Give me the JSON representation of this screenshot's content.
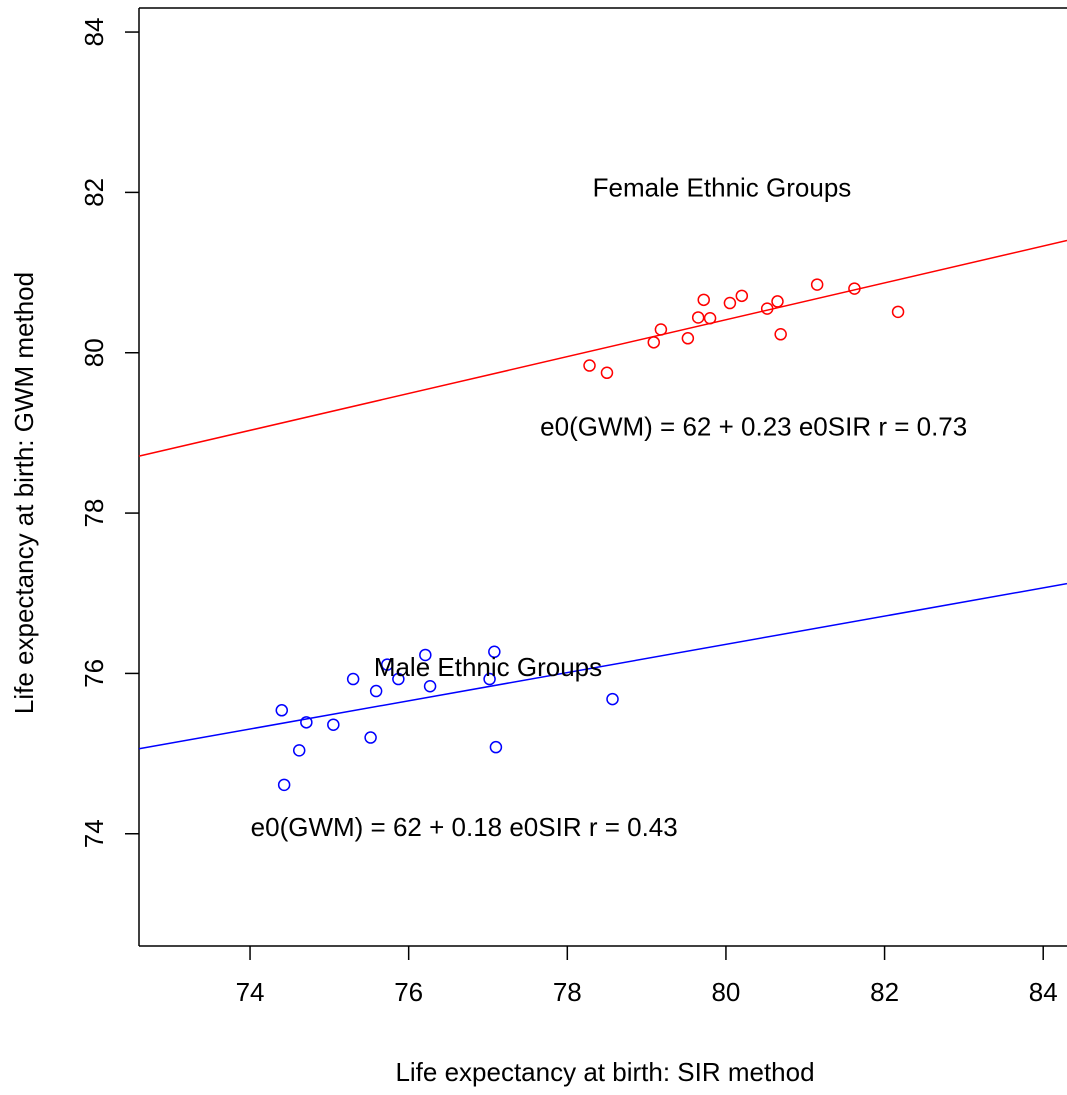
{
  "chart_data": {
    "type": "scatter",
    "title": "",
    "xlabel": "Life expectancy at birth:  SIR method",
    "ylabel": "Life expectancy at birth:  GWM method",
    "xlim": [
      72.6,
      84.3
    ],
    "ylim": [
      72.6,
      84.3
    ],
    "xticks": [
      "74",
      "76",
      "78",
      "80",
      "82",
      "84"
    ],
    "yticks": [
      "74",
      "76",
      "78",
      "80",
      "82",
      "84"
    ],
    "grid": false,
    "series": [
      {
        "name": "Female Ethnic Groups",
        "color": "#ff0000",
        "marker": "open-circle",
        "points": [
          [
            78.28,
            79.84
          ],
          [
            78.5,
            79.75
          ],
          [
            79.09,
            80.13
          ],
          [
            79.18,
            80.29
          ],
          [
            79.52,
            80.18
          ],
          [
            79.65,
            80.44
          ],
          [
            79.72,
            80.66
          ],
          [
            79.8,
            80.43
          ],
          [
            80.05,
            80.62
          ],
          [
            80.2,
            80.71
          ],
          [
            80.52,
            80.55
          ],
          [
            80.65,
            80.64
          ],
          [
            80.69,
            80.23
          ],
          [
            81.15,
            80.85
          ],
          [
            81.62,
            80.8
          ],
          [
            82.17,
            80.51
          ]
        ],
        "fit": {
          "intercept": 62,
          "slope": 0.23,
          "r": 0.73,
          "label": "e0(GWM) = 62 + 0.23 e0SIR     r = 0.73"
        }
      },
      {
        "name": "Male Ethnic Groups",
        "color": "#0000ff",
        "marker": "open-circle",
        "points": [
          [
            74.4,
            75.54
          ],
          [
            74.43,
            74.61
          ],
          [
            74.62,
            75.04
          ],
          [
            74.71,
            75.39
          ],
          [
            75.05,
            75.36
          ],
          [
            75.3,
            75.93
          ],
          [
            75.52,
            75.2
          ],
          [
            75.59,
            75.78
          ],
          [
            75.73,
            76.11
          ],
          [
            75.87,
            75.93
          ],
          [
            76.21,
            76.23
          ],
          [
            76.27,
            75.84
          ],
          [
            77.02,
            75.93
          ],
          [
            77.08,
            76.27
          ],
          [
            77.1,
            75.08
          ],
          [
            78.57,
            75.68
          ]
        ],
        "fit": {
          "intercept": 62,
          "slope": 0.18,
          "r": 0.43,
          "label": "e0(GWM) = 62 + 0.18 e0SIR     r = 0.43"
        }
      }
    ],
    "fit_lines": [
      {
        "series": "Female Ethnic Groups",
        "x": [
          72.6,
          84.3
        ],
        "y": [
          78.71,
          81.4
        ]
      },
      {
        "series": "Male Ethnic Groups",
        "x": [
          72.6,
          84.3
        ],
        "y": [
          75.06,
          77.12
        ]
      }
    ],
    "annotations": [
      {
        "name": "female-group-label",
        "text": "Female Ethnic Groups",
        "x": 79.95,
        "y": 81.95,
        "anchor": "middle"
      },
      {
        "name": "female-fit-label",
        "text": "e0(GWM) = 62 + 0.23 e0SIR     r = 0.73",
        "x": 80.35,
        "y": 78.97,
        "anchor": "middle"
      },
      {
        "name": "male-group-label",
        "text": "Male Ethnic Groups",
        "x": 77.0,
        "y": 75.97,
        "anchor": "middle"
      },
      {
        "name": "male-fit-label",
        "text": "e0(GWM) = 62 + 0.18 e0SIR     r = 0.43",
        "x": 76.7,
        "y": 73.97,
        "anchor": "middle"
      }
    ]
  }
}
